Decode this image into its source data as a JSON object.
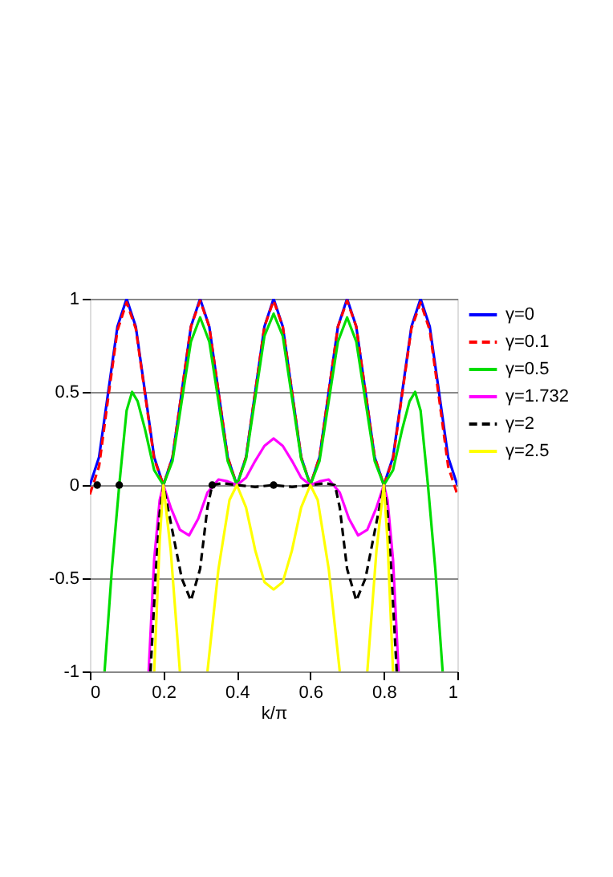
{
  "chart_data": {
    "type": "line",
    "xlabel": "k/π",
    "xlim": [
      0,
      1
    ],
    "ylim": [
      -1,
      1
    ],
    "xticks": [
      0,
      0.2,
      0.4,
      0.6,
      0.8,
      1
    ],
    "yticks": [
      -1,
      -0.5,
      0,
      0.5,
      1
    ],
    "grid": "y",
    "legend": "right",
    "series": [
      {
        "name": "γ=0",
        "color": "#0000ff",
        "line_style": "solid",
        "x": [
          0,
          0.025,
          0.05,
          0.075,
          0.1,
          0.125,
          0.15,
          0.175,
          0.2,
          0.225,
          0.25,
          0.275,
          0.3,
          0.325,
          0.35,
          0.375,
          0.4,
          0.425,
          0.45,
          0.475,
          0.5,
          0.525,
          0.55,
          0.575,
          0.6,
          0.625,
          0.65,
          0.675,
          0.7,
          0.725,
          0.75,
          0.775,
          0.8,
          0.825,
          0.85,
          0.875,
          0.9,
          0.925,
          0.95,
          0.975,
          1
        ],
        "values": [
          0,
          0.15,
          0.5,
          0.85,
          1,
          0.85,
          0.5,
          0.15,
          0,
          0.15,
          0.5,
          0.85,
          1,
          0.85,
          0.5,
          0.15,
          0,
          0.15,
          0.5,
          0.85,
          1,
          0.85,
          0.5,
          0.15,
          0,
          0.15,
          0.5,
          0.85,
          1,
          0.85,
          0.5,
          0.15,
          0,
          0.15,
          0.5,
          0.85,
          1,
          0.85,
          0.5,
          0.15,
          0
        ]
      },
      {
        "name": "γ=0.1",
        "color": "#ff0000",
        "line_style": "dashed",
        "x": [
          0,
          0.025,
          0.05,
          0.075,
          0.1,
          0.125,
          0.15,
          0.175,
          0.2,
          0.225,
          0.25,
          0.275,
          0.3,
          0.325,
          0.35,
          0.375,
          0.4,
          0.425,
          0.45,
          0.475,
          0.5,
          0.525,
          0.55,
          0.575,
          0.6,
          0.625,
          0.65,
          0.675,
          0.7,
          0.725,
          0.75,
          0.775,
          0.8,
          0.825,
          0.85,
          0.875,
          0.9,
          0.925,
          0.95,
          0.975,
          1
        ],
        "values": [
          -0.05,
          0.1,
          0.47,
          0.83,
          0.98,
          0.84,
          0.49,
          0.14,
          0,
          0.15,
          0.5,
          0.85,
          0.99,
          0.85,
          0.5,
          0.15,
          0,
          0.15,
          0.5,
          0.85,
          0.99,
          0.85,
          0.5,
          0.15,
          0,
          0.15,
          0.5,
          0.85,
          0.99,
          0.85,
          0.5,
          0.15,
          0,
          0.14,
          0.49,
          0.84,
          0.98,
          0.83,
          0.47,
          0.1,
          -0.05
        ]
      },
      {
        "name": "γ=0.5",
        "color": "#00dd00",
        "line_style": "solid",
        "x": [
          0.04,
          0.06,
          0.08,
          0.1,
          0.115,
          0.13,
          0.15,
          0.175,
          0.2,
          0.225,
          0.25,
          0.275,
          0.3,
          0.325,
          0.35,
          0.375,
          0.4,
          0.425,
          0.45,
          0.475,
          0.5,
          0.525,
          0.55,
          0.575,
          0.6,
          0.625,
          0.65,
          0.675,
          0.7,
          0.725,
          0.75,
          0.775,
          0.8,
          0.825,
          0.85,
          0.87,
          0.885,
          0.9,
          0.92,
          0.94,
          0.96
        ],
        "values": [
          -1,
          -0.45,
          0,
          0.4,
          0.5,
          0.45,
          0.3,
          0.08,
          0,
          0.13,
          0.45,
          0.77,
          0.9,
          0.77,
          0.45,
          0.13,
          0,
          0.14,
          0.47,
          0.8,
          0.92,
          0.8,
          0.47,
          0.14,
          0,
          0.13,
          0.45,
          0.77,
          0.9,
          0.77,
          0.45,
          0.13,
          0,
          0.08,
          0.3,
          0.45,
          0.5,
          0.4,
          0,
          -0.45,
          -1
        ]
      },
      {
        "name": "γ=1.732",
        "color": "#ff00ff",
        "line_style": "solid",
        "x": [
          0.16,
          0.175,
          0.19,
          0.2,
          0.22,
          0.245,
          0.27,
          0.295,
          0.32,
          0.35,
          0.375,
          0.4,
          0.425,
          0.45,
          0.475,
          0.5,
          0.525,
          0.55,
          0.575,
          0.6,
          0.625,
          0.65,
          0.68,
          0.705,
          0.73,
          0.755,
          0.78,
          0.8,
          0.81,
          0.825,
          0.84
        ],
        "values": [
          -1,
          -0.4,
          -0.08,
          0,
          -0.12,
          -0.24,
          -0.27,
          -0.18,
          -0.04,
          0.03,
          0.02,
          0,
          0.04,
          0.13,
          0.21,
          0.25,
          0.21,
          0.13,
          0.04,
          0,
          0.02,
          0.03,
          -0.04,
          -0.18,
          -0.27,
          -0.24,
          -0.12,
          0,
          -0.08,
          -0.4,
          -1
        ]
      },
      {
        "name": "γ=2",
        "color": "#000000",
        "line_style": "dashed",
        "x": [
          0.165,
          0.18,
          0.19,
          0.2,
          0.22,
          0.25,
          0.275,
          0.3,
          0.32,
          0.333,
          0.36,
          0.4,
          0.45,
          0.5,
          0.55,
          0.6,
          0.64,
          0.667,
          0.68,
          0.7,
          0.725,
          0.75,
          0.78,
          0.8,
          0.81,
          0.82,
          0.835
        ],
        "values": [
          -1,
          -0.45,
          -0.15,
          0,
          -0.2,
          -0.5,
          -0.62,
          -0.45,
          -0.12,
          0,
          0.01,
          0,
          -0.01,
          0,
          -0.01,
          0,
          0.01,
          0,
          -0.12,
          -0.45,
          -0.62,
          -0.5,
          -0.2,
          0,
          -0.15,
          -0.45,
          -1
        ]
      },
      {
        "name": "γ=2.5",
        "color": "#ffff00",
        "line_style": "solid",
        "x": [
          0.175,
          0.19,
          0.2,
          0.22,
          0.245,
          0.28,
          0.32,
          0.35,
          0.38,
          0.4,
          0.425,
          0.45,
          0.475,
          0.5,
          0.525,
          0.55,
          0.575,
          0.6,
          0.62,
          0.65,
          0.68,
          0.72,
          0.755,
          0.78,
          0.8,
          0.81,
          0.825
        ],
        "values": [
          -1,
          -0.3,
          0,
          -0.35,
          -1,
          null,
          -1,
          -0.45,
          -0.08,
          0,
          -0.12,
          -0.35,
          -0.52,
          -0.56,
          -0.52,
          -0.35,
          -0.12,
          0,
          -0.08,
          -0.45,
          -1,
          null,
          -1,
          -0.35,
          0,
          -0.3,
          -1
        ]
      },
      {
        "type": "scatter",
        "color": "#000000",
        "marker": "circle",
        "x": [
          0.02,
          0.08,
          0.333,
          0.5
        ],
        "values": [
          0,
          0,
          0,
          0
        ]
      }
    ]
  }
}
